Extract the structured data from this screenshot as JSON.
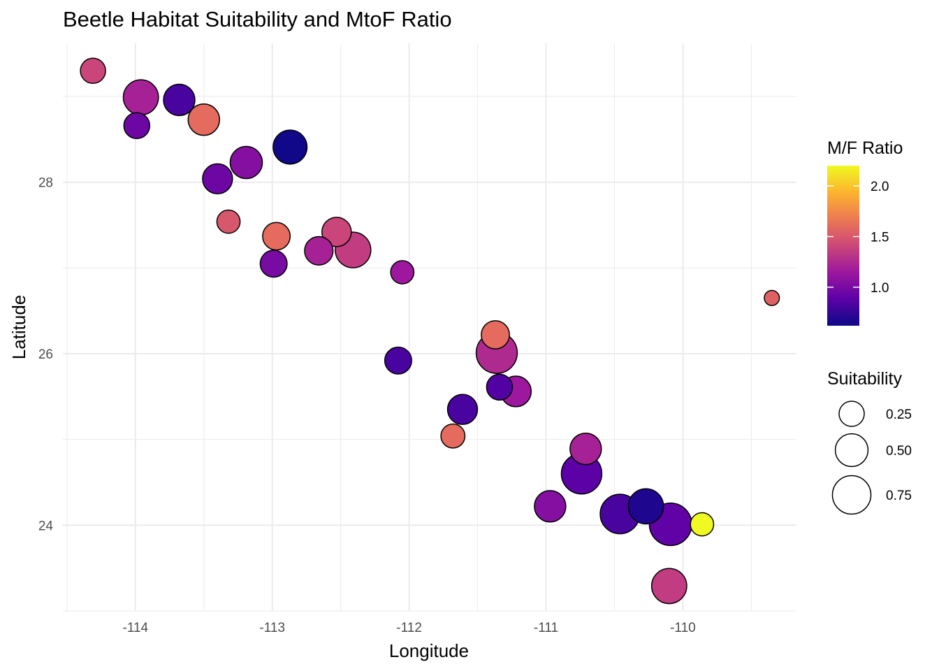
{
  "chart_data": {
    "type": "scatter",
    "title": "Beetle Habitat Suitability and MtoF Ratio",
    "xlabel": "Longitude",
    "ylabel": "Latitude",
    "xlim": [
      -114.53,
      -109.17
    ],
    "ylim": [
      23.0,
      29.62
    ],
    "x_ticks": [
      -114,
      -113,
      -112,
      -111,
      -110
    ],
    "x_tick_labels": [
      "-114",
      "-113",
      "-112",
      "-111",
      "-110"
    ],
    "y_ticks": [
      24,
      26,
      28
    ],
    "y_tick_labels": [
      "24",
      "26",
      "28"
    ],
    "grid": true,
    "legend_placement": "right",
    "color_legend": {
      "title": "M/F Ratio",
      "min": 0.62,
      "max": 2.2,
      "ticks": [
        1.0,
        1.5,
        2.0
      ],
      "tick_labels": [
        "1.0",
        "1.5",
        "2.0"
      ],
      "palette": [
        "#0d0887",
        "#5c01a6",
        "#9c179e",
        "#cc4778",
        "#ed7953",
        "#fdb42f",
        "#f0f921"
      ]
    },
    "size_legend": {
      "title": "Suitability",
      "values": [
        0.25,
        0.5,
        0.75
      ],
      "labels": [
        "0.25",
        "0.50",
        "0.75"
      ]
    },
    "points": [
      {
        "x": -114.31,
        "y": 29.3,
        "suitability": 0.25,
        "ratio": 1.4
      },
      {
        "x": -113.96,
        "y": 28.99,
        "suitability": 0.6,
        "ratio": 1.2
      },
      {
        "x": -113.99,
        "y": 28.66,
        "suitability": 0.27,
        "ratio": 0.95
      },
      {
        "x": -113.68,
        "y": 28.96,
        "suitability": 0.45,
        "ratio": 0.82
      },
      {
        "x": -113.5,
        "y": 28.73,
        "suitability": 0.45,
        "ratio": 1.6
      },
      {
        "x": -113.4,
        "y": 28.04,
        "suitability": 0.4,
        "ratio": 0.95
      },
      {
        "x": -113.19,
        "y": 28.23,
        "suitability": 0.48,
        "ratio": 1.05
      },
      {
        "x": -112.87,
        "y": 28.41,
        "suitability": 0.55,
        "ratio": 0.63
      },
      {
        "x": -113.32,
        "y": 27.54,
        "suitability": 0.2,
        "ratio": 1.5
      },
      {
        "x": -112.97,
        "y": 27.37,
        "suitability": 0.32,
        "ratio": 1.6
      },
      {
        "x": -112.99,
        "y": 27.05,
        "suitability": 0.3,
        "ratio": 1.0
      },
      {
        "x": -112.66,
        "y": 27.2,
        "suitability": 0.35,
        "ratio": 1.2
      },
      {
        "x": -112.53,
        "y": 27.42,
        "suitability": 0.38,
        "ratio": 1.4
      },
      {
        "x": -112.41,
        "y": 27.21,
        "suitability": 0.62,
        "ratio": 1.35
      },
      {
        "x": -112.05,
        "y": 26.95,
        "suitability": 0.2,
        "ratio": 1.15
      },
      {
        "x": -112.08,
        "y": 25.92,
        "suitability": 0.3,
        "ratio": 0.82
      },
      {
        "x": -111.37,
        "y": 26.22,
        "suitability": 0.34,
        "ratio": 1.6
      },
      {
        "x": -111.36,
        "y": 26.01,
        "suitability": 0.88,
        "ratio": 1.25
      },
      {
        "x": -111.34,
        "y": 25.61,
        "suitability": 0.27,
        "ratio": 0.85
      },
      {
        "x": -111.22,
        "y": 25.56,
        "suitability": 0.42,
        "ratio": 1.15
      },
      {
        "x": -111.61,
        "y": 25.35,
        "suitability": 0.4,
        "ratio": 0.82
      },
      {
        "x": -111.68,
        "y": 25.04,
        "suitability": 0.22,
        "ratio": 1.6
      },
      {
        "x": -110.71,
        "y": 24.89,
        "suitability": 0.45,
        "ratio": 1.2
      },
      {
        "x": -110.74,
        "y": 24.6,
        "suitability": 0.85,
        "ratio": 0.88
      },
      {
        "x": -110.97,
        "y": 24.22,
        "suitability": 0.45,
        "ratio": 1.05
      },
      {
        "x": -110.27,
        "y": 24.22,
        "suitability": 0.6,
        "ratio": 0.68
      },
      {
        "x": -110.46,
        "y": 24.13,
        "suitability": 0.8,
        "ratio": 0.82
      },
      {
        "x": -110.09,
        "y": 24.01,
        "suitability": 0.95,
        "ratio": 0.9
      },
      {
        "x": -109.86,
        "y": 24.01,
        "suitability": 0.2,
        "ratio": 2.2
      },
      {
        "x": -110.1,
        "y": 23.29,
        "suitability": 0.6,
        "ratio": 1.35
      },
      {
        "x": -109.35,
        "y": 26.65,
        "suitability": 0.05,
        "ratio": 1.55
      }
    ]
  }
}
